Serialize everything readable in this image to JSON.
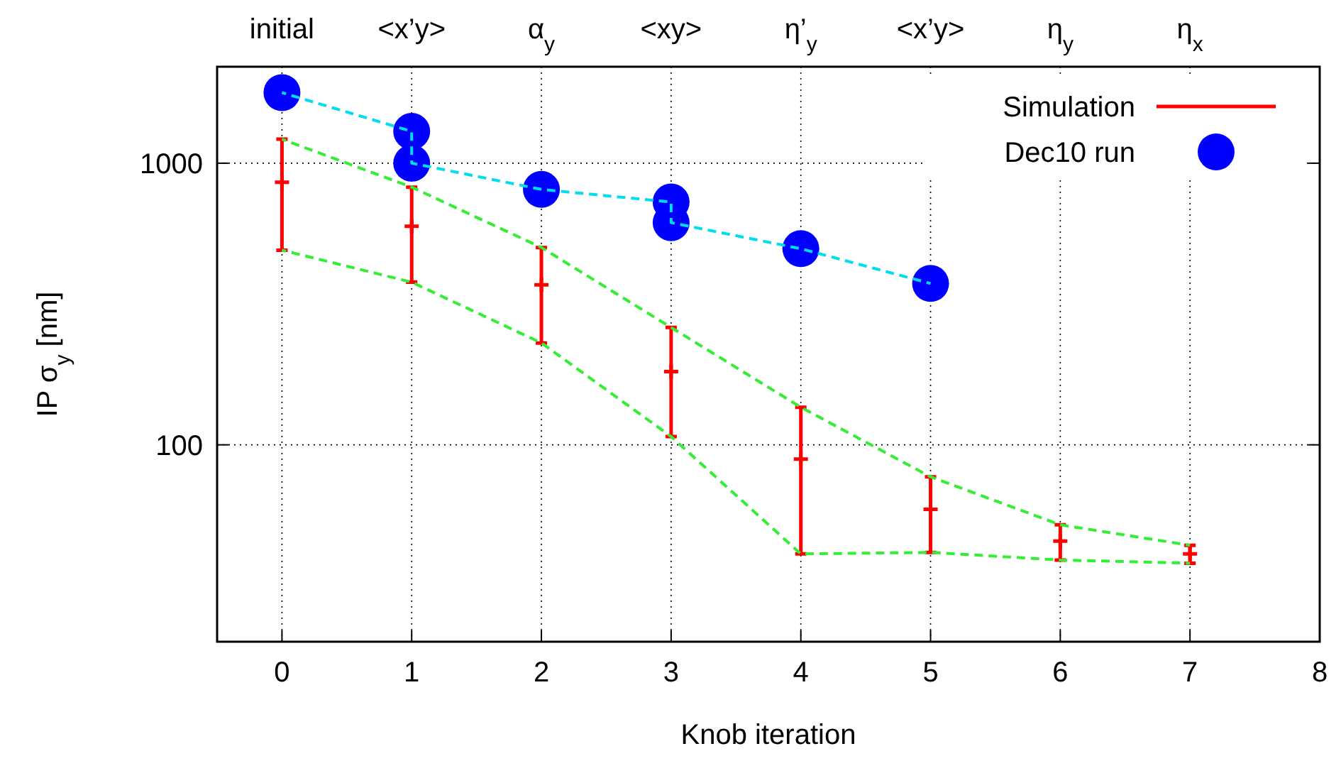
{
  "chart_data": {
    "type": "scatter",
    "xlabel": "Knob iteration",
    "ylabel": "IP σ$_{y}$ [nm]",
    "xlim": [
      -0.5,
      8
    ],
    "xticks": [
      0,
      1,
      2,
      3,
      4,
      5,
      6,
      7,
      8
    ],
    "annotations": [
      "initial",
      "<x’y>",
      "α$_{y}$",
      "<xy>",
      "η’$_{y}$",
      "<x’y>",
      "η$_{y}$",
      "η$_{x}$"
    ],
    "ylim": [
      20,
      2200
    ],
    "yticks": [
      100,
      1000
    ],
    "log": "y",
    "grid": true,
    "legend": "top right",
    "series": [
      {
        "name": "Simulation",
        "marker": "cross",
        "color": "#ff0000",
        "x": [
          0,
          1,
          2,
          3,
          4,
          5,
          6,
          7
        ],
        "values": [
          855,
          597,
          370,
          182,
          89,
          59,
          45.5,
          41
        ],
        "errors": [
          [
            491,
            1217
          ],
          [
            378,
            822
          ],
          [
            230,
            502
          ],
          [
            107,
            261
          ],
          [
            41,
            136
          ],
          [
            41.5,
            77
          ],
          [
            39,
            52
          ],
          [
            38,
            44
          ]
        ]
      },
      {
        "name": "Dec10 run",
        "marker": "circle",
        "color": "#0000ff",
        "x": [
          0,
          1,
          1,
          2,
          3,
          3,
          4,
          5
        ],
        "values": [
          1780,
          1297,
          1000,
          807,
          728,
          615,
          497,
          374
        ]
      },
      {
        "type": "line",
        "line_style": "dashed",
        "color": "#00ddee",
        "x": [
          0,
          1,
          1,
          2,
          3,
          3,
          4,
          5
        ],
        "values": [
          1780,
          1297,
          1000,
          807,
          728,
          615,
          497,
          374
        ]
      },
      {
        "type": "line",
        "line_style": "dashed",
        "color": "#33ee33",
        "x": [
          0,
          1,
          2,
          3,
          4,
          5,
          6,
          7
        ],
        "values": [
          1217,
          822,
          502,
          261,
          136,
          77,
          52,
          44
        ]
      },
      {
        "type": "line",
        "line_style": "dashed",
        "color": "#33ee33",
        "x": [
          0,
          1,
          2,
          3,
          4,
          5,
          6,
          7
        ],
        "values": [
          491,
          378,
          230,
          107,
          41,
          41.5,
          39,
          38
        ]
      }
    ]
  }
}
